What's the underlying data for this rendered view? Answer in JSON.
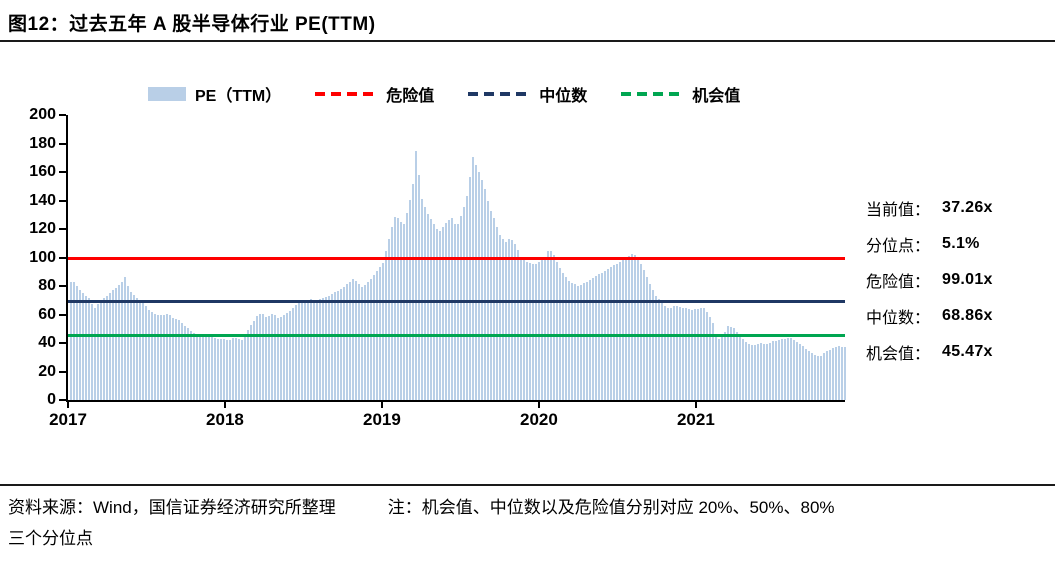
{
  "title": "图12：过去五年 A 股半导体行业 PE(TTM)",
  "colors": {
    "bar": "#b9cfe7",
    "risk": "#fe0000",
    "median": "#1f3864",
    "opportunity": "#00a651",
    "axis": "#000000"
  },
  "legend": [
    {
      "name_en": "pe-ttm",
      "label": "PE（TTM）",
      "type": "box",
      "color": "#b9cfe7"
    },
    {
      "name_en": "risk",
      "label": "危险值",
      "type": "dash",
      "color": "#fe0000"
    },
    {
      "name_en": "median",
      "label": "中位数",
      "type": "dash",
      "color": "#1f3864"
    },
    {
      "name_en": "opportunity",
      "label": "机会值",
      "type": "dash",
      "color": "#00a651"
    }
  ],
  "stats": [
    {
      "name_en": "current",
      "label": "当前值：",
      "value": "37.26x"
    },
    {
      "name_en": "percentile",
      "label": "分位点：",
      "value": "5.1%"
    },
    {
      "name_en": "risk",
      "label": "危险值：",
      "value": "99.01x"
    },
    {
      "name_en": "median",
      "label": "中位数：",
      "value": "68.86x"
    },
    {
      "name_en": "opportunity",
      "label": "机会值：",
      "value": "45.47x"
    }
  ],
  "footer": {
    "source": "资料来源：Wind，国信证券经济研究所整理",
    "note_line1": "注：机会值、中位数以及危险值分别对应 20%、50%、80%",
    "note_line2": "三个分位点"
  },
  "chart_data": {
    "type": "bar",
    "title": "过去五年 A 股半导体行业 PE(TTM)",
    "series_name": "PE（TTM）",
    "x_unit": "decimal_year",
    "xlim": [
      2017.0,
      2021.95
    ],
    "ylim": [
      0,
      200
    ],
    "y_ticks": [
      0,
      20,
      40,
      60,
      80,
      100,
      120,
      140,
      160,
      180,
      200
    ],
    "x_ticks": [
      2017,
      2018,
      2019,
      2020,
      2021
    ],
    "grid": false,
    "legend_position": "top",
    "bar_color": "#b9cfe7",
    "reference_lines": [
      {
        "name_en": "risk-line",
        "label": "危险值",
        "value": 99.01,
        "color": "#fe0000"
      },
      {
        "name_en": "median-line",
        "label": "中位数",
        "value": 68.86,
        "color": "#1f3864"
      },
      {
        "name_en": "opportunity-line",
        "label": "机会值",
        "value": 45.47,
        "color": "#00a651"
      }
    ],
    "current_value": 37.26,
    "percentile": "5.1%",
    "points": [
      [
        2017.0,
        80
      ],
      [
        2017.02,
        84
      ],
      [
        2017.04,
        82
      ],
      [
        2017.07,
        77
      ],
      [
        2017.1,
        74
      ],
      [
        2017.13,
        71
      ],
      [
        2017.16,
        64
      ],
      [
        2017.19,
        68
      ],
      [
        2017.22,
        71
      ],
      [
        2017.25,
        74
      ],
      [
        2017.28,
        77
      ],
      [
        2017.31,
        80
      ],
      [
        2017.34,
        83
      ],
      [
        2017.36,
        87
      ],
      [
        2017.38,
        78
      ],
      [
        2017.41,
        74
      ],
      [
        2017.45,
        70
      ],
      [
        2017.48,
        67
      ],
      [
        2017.52,
        62
      ],
      [
        2017.56,
        60
      ],
      [
        2017.6,
        59
      ],
      [
        2017.63,
        61
      ],
      [
        2017.66,
        58
      ],
      [
        2017.7,
        56
      ],
      [
        2017.74,
        52
      ],
      [
        2017.78,
        48
      ],
      [
        2017.82,
        45
      ],
      [
        2017.86,
        44
      ],
      [
        2017.9,
        45
      ],
      [
        2017.94,
        43
      ],
      [
        2017.98,
        43
      ],
      [
        2018.02,
        42
      ],
      [
        2018.06,
        44
      ],
      [
        2018.1,
        42
      ],
      [
        2018.13,
        47
      ],
      [
        2018.16,
        53
      ],
      [
        2018.2,
        59
      ],
      [
        2018.23,
        61
      ],
      [
        2018.26,
        58
      ],
      [
        2018.3,
        61
      ],
      [
        2018.34,
        57
      ],
      [
        2018.37,
        60
      ],
      [
        2018.4,
        62
      ],
      [
        2018.44,
        66
      ],
      [
        2018.47,
        70
      ],
      [
        2018.5,
        68
      ],
      [
        2018.54,
        71
      ],
      [
        2018.58,
        70
      ],
      [
        2018.62,
        72
      ],
      [
        2018.66,
        73
      ],
      [
        2018.7,
        76
      ],
      [
        2018.74,
        78
      ],
      [
        2018.78,
        82
      ],
      [
        2018.81,
        85
      ],
      [
        2018.84,
        82
      ],
      [
        2018.87,
        79
      ],
      [
        2018.9,
        82
      ],
      [
        2018.93,
        86
      ],
      [
        2018.96,
        90
      ],
      [
        2019.0,
        96
      ],
      [
        2019.02,
        105
      ],
      [
        2019.05,
        118
      ],
      [
        2019.08,
        130
      ],
      [
        2019.11,
        126
      ],
      [
        2019.13,
        122
      ],
      [
        2019.16,
        134
      ],
      [
        2019.19,
        150
      ],
      [
        2019.21,
        175
      ],
      [
        2019.23,
        158
      ],
      [
        2019.25,
        140
      ],
      [
        2019.28,
        132
      ],
      [
        2019.32,
        124
      ],
      [
        2019.36,
        118
      ],
      [
        2019.4,
        124
      ],
      [
        2019.44,
        128
      ],
      [
        2019.47,
        121
      ],
      [
        2019.5,
        130
      ],
      [
        2019.53,
        140
      ],
      [
        2019.55,
        152
      ],
      [
        2019.57,
        172
      ],
      [
        2019.6,
        163
      ],
      [
        2019.62,
        158
      ],
      [
        2019.65,
        148
      ],
      [
        2019.68,
        135
      ],
      [
        2019.71,
        127
      ],
      [
        2019.74,
        117
      ],
      [
        2019.78,
        110
      ],
      [
        2019.81,
        114
      ],
      [
        2019.85,
        108
      ],
      [
        2019.88,
        100
      ],
      [
        2019.92,
        97
      ],
      [
        2019.96,
        95
      ],
      [
        2020.0,
        97
      ],
      [
        2020.03,
        100
      ],
      [
        2020.06,
        106
      ],
      [
        2020.09,
        102
      ],
      [
        2020.12,
        94
      ],
      [
        2020.16,
        87
      ],
      [
        2020.2,
        82
      ],
      [
        2020.25,
        80
      ],
      [
        2020.3,
        83
      ],
      [
        2020.36,
        87
      ],
      [
        2020.42,
        91
      ],
      [
        2020.48,
        95
      ],
      [
        2020.54,
        99
      ],
      [
        2020.6,
        103
      ],
      [
        2020.63,
        98
      ],
      [
        2020.66,
        92
      ],
      [
        2020.7,
        82
      ],
      [
        2020.74,
        73
      ],
      [
        2020.78,
        68
      ],
      [
        2020.82,
        64
      ],
      [
        2020.86,
        66
      ],
      [
        2020.9,
        65
      ],
      [
        2020.94,
        64
      ],
      [
        2020.97,
        63
      ],
      [
        2021.0,
        64
      ],
      [
        2021.04,
        65
      ],
      [
        2021.06,
        63
      ],
      [
        2021.1,
        55
      ],
      [
        2021.13,
        42
      ],
      [
        2021.16,
        44
      ],
      [
        2021.2,
        52
      ],
      [
        2021.24,
        50
      ],
      [
        2021.28,
        44
      ],
      [
        2021.32,
        40
      ],
      [
        2021.36,
        38
      ],
      [
        2021.4,
        40
      ],
      [
        2021.44,
        39
      ],
      [
        2021.48,
        41
      ],
      [
        2021.52,
        42
      ],
      [
        2021.56,
        43
      ],
      [
        2021.59,
        44
      ],
      [
        2021.63,
        41
      ],
      [
        2021.67,
        38
      ],
      [
        2021.71,
        35
      ],
      [
        2021.75,
        32
      ],
      [
        2021.78,
        30
      ],
      [
        2021.82,
        34
      ],
      [
        2021.86,
        36
      ],
      [
        2021.9,
        38
      ],
      [
        2021.93,
        37.26
      ]
    ]
  }
}
